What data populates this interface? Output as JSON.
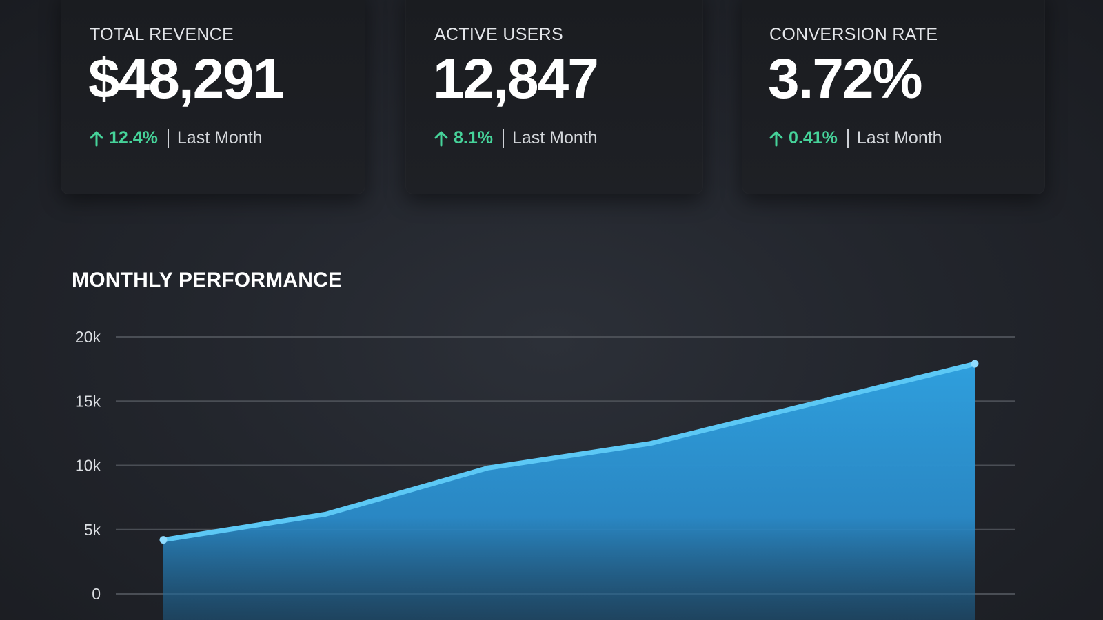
{
  "cards": [
    {
      "label": "TOTAL REVENCE",
      "value": "$48,291",
      "change": "12.4%",
      "period": "Last Month",
      "icon": "arrow-up-icon"
    },
    {
      "label": "ACTIVE USERS",
      "value": "12,847",
      "change": "8.1%",
      "period": "Last Month",
      "icon": "arrow-up-icon"
    },
    {
      "label": "CONVERSION RATE",
      "value": "3.72%",
      "change": "0.41%",
      "period": "Last Month",
      "icon": "arrow-up-icon"
    }
  ],
  "colors": {
    "positive": "#46d39a",
    "line": "#5cc8f5",
    "area_top": "#2f9fdd",
    "area_bottom": "#1d5e8a",
    "grid": "#4a4e55"
  },
  "chart_data": {
    "type": "area",
    "title": "MONTHLY PERFORMANCE",
    "xlabel": "",
    "ylabel": "",
    "y_ticks": [
      "0",
      "5k",
      "10k",
      "15k",
      "20k"
    ],
    "ylim": [
      0,
      20000
    ],
    "grid": true,
    "x": [
      0,
      1,
      2,
      3,
      4,
      5
    ],
    "series": [
      {
        "values": [
          4200,
          6200,
          9800,
          11700,
          14800,
          17900
        ]
      }
    ]
  }
}
